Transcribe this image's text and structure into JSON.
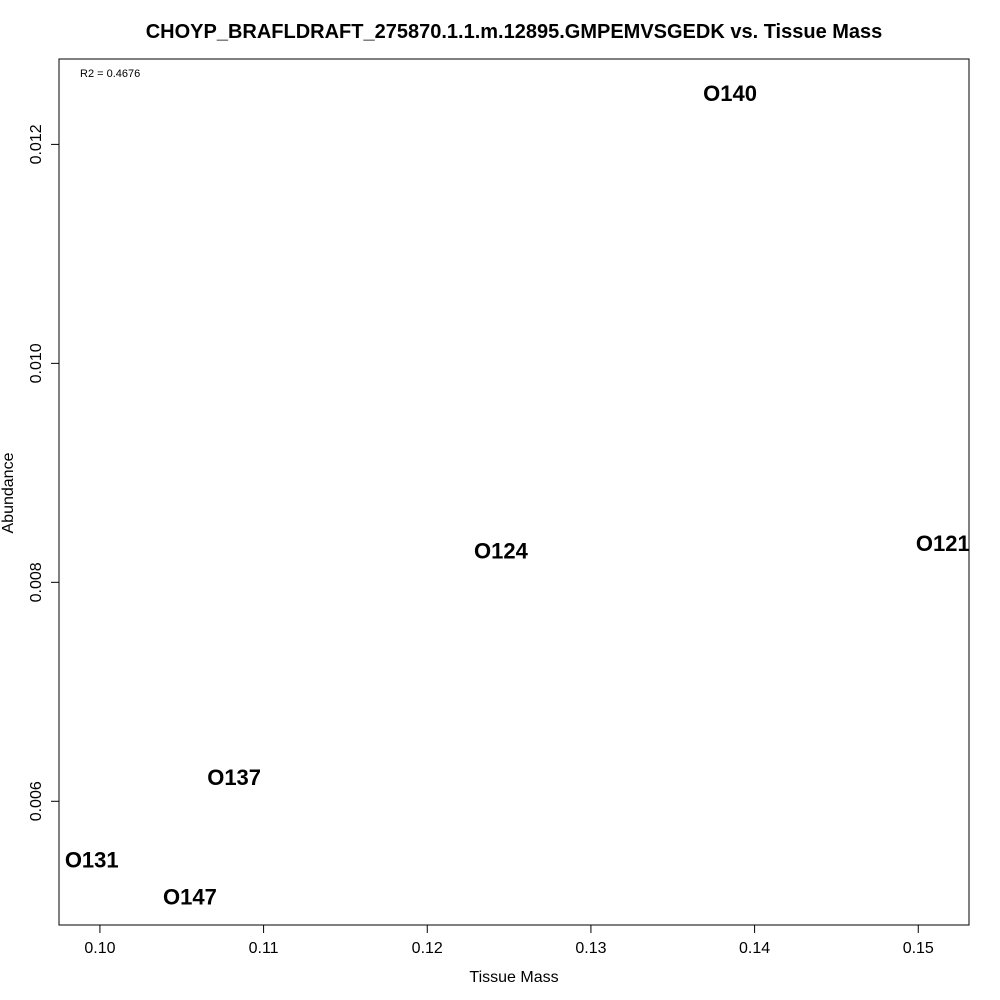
{
  "chart_data": {
    "type": "scatter",
    "title": "CHOYP_BRAFLDRAFT_275870.1.1.m.12895.GMPEMVSGEDK vs. Tissue Mass",
    "xlabel": "Tissue Mass",
    "ylabel": "Abundance",
    "annotation": "R2 = 0.4676",
    "xlim": [
      0.0975,
      0.1531
    ],
    "ylim": [
      0.00487,
      0.01278
    ],
    "x_ticks": [
      0.1,
      0.11,
      0.12,
      0.13,
      0.14,
      0.15
    ],
    "x_tick_labels": [
      "0.10",
      "0.11",
      "0.12",
      "0.13",
      "0.14",
      "0.15"
    ],
    "y_ticks": [
      0.006,
      0.008,
      0.01,
      0.012
    ],
    "y_tick_labels": [
      "0.006",
      "0.008",
      "0.010",
      "0.012"
    ],
    "grid": false,
    "points": [
      {
        "label": "O140",
        "x": 0.1385,
        "y": 0.01247
      },
      {
        "label": "O124",
        "x": 0.1245,
        "y": 0.00829
      },
      {
        "label": "O121",
        "x": 0.1515,
        "y": 0.00836
      },
      {
        "label": "O137",
        "x": 0.1082,
        "y": 0.00622
      },
      {
        "label": "O131",
        "x": 0.0995,
        "y": 0.00547
      },
      {
        "label": "O147",
        "x": 0.1055,
        "y": 0.00513
      }
    ]
  }
}
